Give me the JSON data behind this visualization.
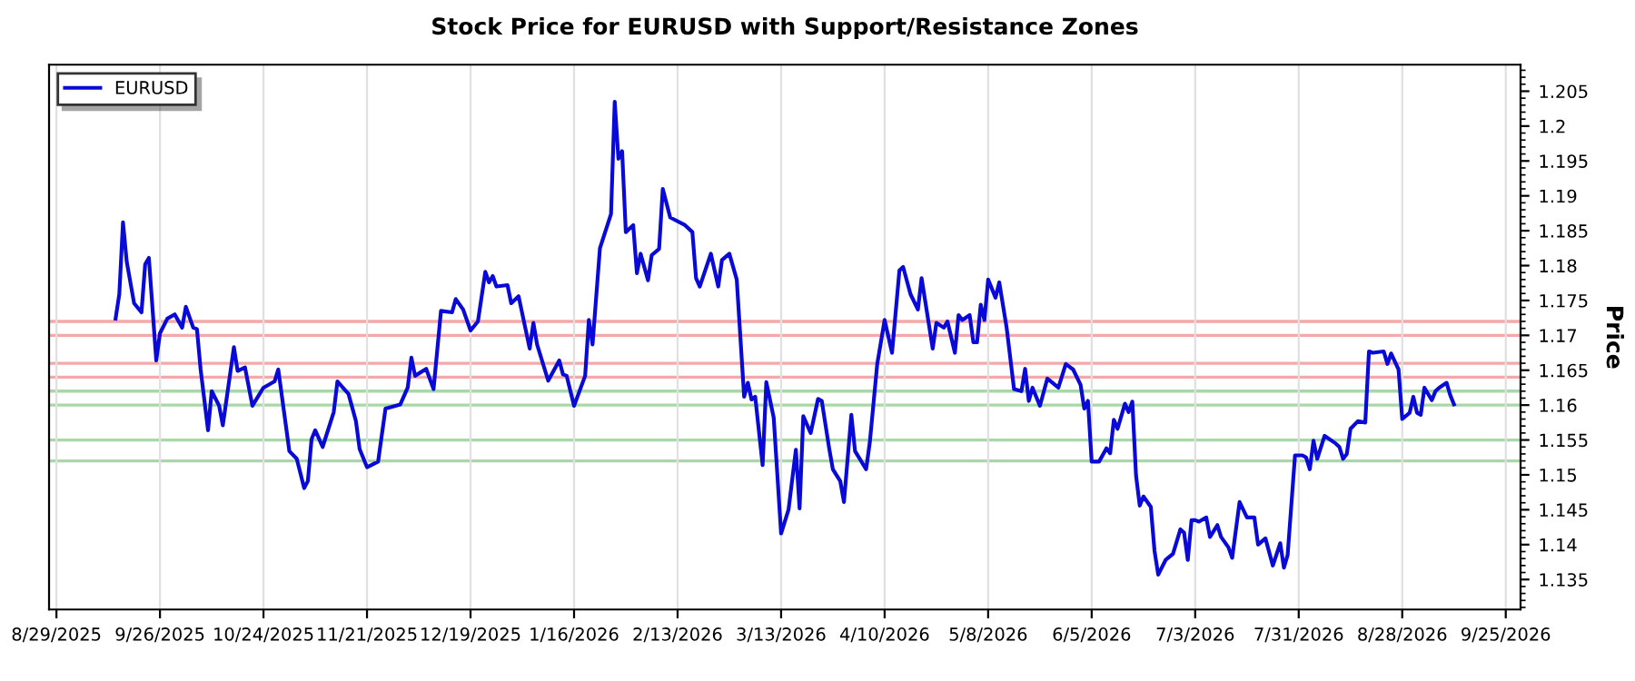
{
  "chart_data": {
    "type": "line",
    "title": "Stock Price for EURUSD with Support/Resistance Zones",
    "ylabel": "Price",
    "x": [
      "2025-09-14",
      "2025-09-15",
      "2025-09-16",
      "2025-09-17",
      "2025-09-19",
      "2025-09-21",
      "2025-09-22",
      "2025-09-23",
      "2025-09-25",
      "2025-09-26",
      "2025-09-28",
      "2025-09-30",
      "2025-10-02",
      "2025-10-03",
      "2025-10-05",
      "2025-10-06",
      "2025-10-07",
      "2025-10-09",
      "2025-10-10",
      "2025-10-12",
      "2025-10-13",
      "2025-10-16",
      "2025-10-17",
      "2025-10-19",
      "2025-10-21",
      "2025-10-24",
      "2025-10-27",
      "2025-10-28",
      "2025-10-31",
      "2025-11-02",
      "2025-11-04",
      "2025-11-05",
      "2025-11-06",
      "2025-11-07",
      "2025-11-09",
      "2025-11-12",
      "2025-11-13",
      "2025-11-16",
      "2025-11-18",
      "2025-11-19",
      "2025-11-21",
      "2025-11-24",
      "2025-11-26",
      "2025-11-30",
      "2025-12-02",
      "2025-12-03",
      "2025-12-04",
      "2025-12-07",
      "2025-12-09",
      "2025-12-11",
      "2025-12-14",
      "2025-12-15",
      "2025-12-17",
      "2025-12-19",
      "2025-12-21",
      "2025-12-23",
      "2025-12-24",
      "2025-12-25",
      "2025-12-26",
      "2025-12-29",
      "2025-12-30",
      "2026-01-01",
      "2026-01-04",
      "2026-01-05",
      "2026-01-06",
      "2026-01-09",
      "2026-01-12",
      "2026-01-13",
      "2026-01-14",
      "2026-01-16",
      "2026-01-19",
      "2026-01-20",
      "2026-01-21",
      "2026-01-23",
      "2026-01-26",
      "2026-01-27",
      "2026-01-28",
      "2026-01-29",
      "2026-01-30",
      "2026-02-01",
      "2026-02-02",
      "2026-02-03",
      "2026-02-05",
      "2026-02-06",
      "2026-02-08",
      "2026-02-09",
      "2026-02-11",
      "2026-02-15",
      "2026-02-17",
      "2026-02-18",
      "2026-02-19",
      "2026-02-22",
      "2026-02-24",
      "2026-02-25",
      "2026-02-27",
      "2026-03-01",
      "2026-03-03",
      "2026-03-04",
      "2026-03-05",
      "2026-03-06",
      "2026-03-08",
      "2026-03-09",
      "2026-03-11",
      "2026-03-13",
      "2026-03-15",
      "2026-03-17",
      "2026-03-18",
      "2026-03-19",
      "2026-03-21",
      "2026-03-23",
      "2026-03-24",
      "2026-03-26",
      "2026-03-27",
      "2026-03-29",
      "2026-03-30",
      "2026-04-01",
      "2026-04-02",
      "2026-04-05",
      "2026-04-06",
      "2026-04-08",
      "2026-04-10",
      "2026-04-12",
      "2026-04-14",
      "2026-04-15",
      "2026-04-17",
      "2026-04-19",
      "2026-04-20",
      "2026-04-23",
      "2026-04-24",
      "2026-04-26",
      "2026-04-27",
      "2026-04-29",
      "2026-04-30",
      "2026-05-01",
      "2026-05-03",
      "2026-05-04",
      "2026-05-05",
      "2026-05-06",
      "2026-05-07",
      "2026-05-08",
      "2026-05-10",
      "2026-05-11",
      "2026-05-13",
      "2026-05-15",
      "2026-05-17",
      "2026-05-18",
      "2026-05-19",
      "2026-05-20",
      "2026-05-22",
      "2026-05-24",
      "2026-05-27",
      "2026-05-29",
      "2026-05-31",
      "2026-06-02",
      "2026-06-03",
      "2026-06-04",
      "2026-06-05",
      "2026-06-07",
      "2026-06-09",
      "2026-06-10",
      "2026-06-11",
      "2026-06-12",
      "2026-06-14",
      "2026-06-15",
      "2026-06-16",
      "2026-06-17",
      "2026-06-18",
      "2026-06-19",
      "2026-06-21",
      "2026-06-22",
      "2026-06-23",
      "2026-06-25",
      "2026-06-27",
      "2026-06-29",
      "2026-06-30",
      "2026-07-01",
      "2026-07-02",
      "2026-07-03",
      "2026-07-04",
      "2026-07-06",
      "2026-07-07",
      "2026-07-09",
      "2026-07-10",
      "2026-07-12",
      "2026-07-13",
      "2026-07-15",
      "2026-07-17",
      "2026-07-19",
      "2026-07-20",
      "2026-07-22",
      "2026-07-24",
      "2026-07-26",
      "2026-07-27",
      "2026-07-28",
      "2026-07-30",
      "2026-08-01",
      "2026-08-02",
      "2026-08-03",
      "2026-08-04",
      "2026-08-05",
      "2026-08-07",
      "2026-08-10",
      "2026-08-11",
      "2026-08-12",
      "2026-08-13",
      "2026-08-14",
      "2026-08-16",
      "2026-08-18",
      "2026-08-19",
      "2026-08-20",
      "2026-08-23",
      "2026-08-24",
      "2026-08-25",
      "2026-08-27",
      "2026-08-28",
      "2026-08-30",
      "2026-08-31",
      "2026-09-01",
      "2026-09-02",
      "2026-09-03",
      "2026-09-05",
      "2026-09-06",
      "2026-09-07",
      "2026-09-09",
      "2026-09-10",
      "2026-09-11"
    ],
    "series": [
      {
        "name": "EURUSD",
        "color": "#0a0ad8",
        "values": [
          1.1724,
          1.1759,
          1.1862,
          1.1806,
          1.1746,
          1.1733,
          1.1802,
          1.1811,
          1.1664,
          1.1703,
          1.1724,
          1.173,
          1.1711,
          1.1741,
          1.1711,
          1.1709,
          1.1651,
          1.1564,
          1.162,
          1.1599,
          1.1571,
          1.1683,
          1.1649,
          1.1654,
          1.1599,
          1.1625,
          1.1634,
          1.1651,
          1.1534,
          1.1523,
          1.1481,
          1.1491,
          1.1551,
          1.1564,
          1.154,
          1.159,
          1.1634,
          1.1616,
          1.1577,
          1.1537,
          1.1511,
          1.1519,
          1.1595,
          1.1601,
          1.1625,
          1.1668,
          1.1642,
          1.1652,
          1.1623,
          1.1735,
          1.1733,
          1.1752,
          1.1737,
          1.1707,
          1.172,
          1.1791,
          1.1776,
          1.1785,
          1.177,
          1.1772,
          1.1746,
          1.1756,
          1.1681,
          1.1718,
          1.1687,
          1.1635,
          1.1664,
          1.1644,
          1.1642,
          1.1599,
          1.1642,
          1.1722,
          1.1687,
          1.1825,
          1.1874,
          1.2035,
          1.1953,
          1.1964,
          1.1848,
          1.1858,
          1.1789,
          1.1817,
          1.1779,
          1.1815,
          1.1824,
          1.191,
          1.1869,
          1.1858,
          1.1848,
          1.1782,
          1.177,
          1.1817,
          1.177,
          1.1808,
          1.1817,
          1.178,
          1.1612,
          1.1632,
          1.1608,
          1.1612,
          1.1514,
          1.1633,
          1.1582,
          1.1416,
          1.145,
          1.1536,
          1.1452,
          1.1584,
          1.156,
          1.1609,
          1.1606,
          1.1538,
          1.1508,
          1.1491,
          1.1461,
          1.1586,
          1.1534,
          1.1508,
          1.1547,
          1.1659,
          1.1722,
          1.1675,
          1.1793,
          1.1798,
          1.1759,
          1.1737,
          1.1782,
          1.1681,
          1.1718,
          1.1711,
          1.172,
          1.1675,
          1.1729,
          1.1722,
          1.1729,
          1.169,
          1.169,
          1.1744,
          1.1722,
          1.178,
          1.1754,
          1.1776,
          1.1711,
          1.1623,
          1.162,
          1.1652,
          1.1606,
          1.1625,
          1.1599,
          1.1638,
          1.1625,
          1.1659,
          1.1651,
          1.1629,
          1.1595,
          1.1606,
          1.1519,
          1.1519,
          1.1538,
          1.1531,
          1.1579,
          1.1566,
          1.1602,
          1.159,
          1.1605,
          1.1499,
          1.1456,
          1.1469,
          1.1454,
          1.1391,
          1.1357,
          1.1378,
          1.1387,
          1.1422,
          1.1417,
          1.1378,
          1.1435,
          1.1435,
          1.1433,
          1.1439,
          1.1411,
          1.1428,
          1.1411,
          1.1396,
          1.1381,
          1.1461,
          1.1439,
          1.1439,
          1.14,
          1.1409,
          1.137,
          1.1402,
          1.1367,
          1.1385,
          1.1528,
          1.1528,
          1.1525,
          1.1508,
          1.1549,
          1.1523,
          1.1556,
          1.1545,
          1.154,
          1.1523,
          1.153,
          1.1566,
          1.1577,
          1.1575,
          1.1677,
          1.1675,
          1.1677,
          1.1659,
          1.1674,
          1.1651,
          1.158,
          1.1589,
          1.1612,
          1.1589,
          1.1586,
          1.1625,
          1.1607,
          1.162,
          1.1625,
          1.1632,
          1.1614,
          1.1601
        ]
      }
    ],
    "xlim": [
      "2025-08-27",
      "2026-09-29"
    ],
    "xticks": [
      {
        "value": "2025-08-29",
        "label": "8/29/2025"
      },
      {
        "value": "2025-09-26",
        "label": "9/26/2025"
      },
      {
        "value": "2025-10-24",
        "label": "10/24/2025"
      },
      {
        "value": "2025-11-21",
        "label": "11/21/2025"
      },
      {
        "value": "2025-12-19",
        "label": "12/19/2025"
      },
      {
        "value": "2026-01-16",
        "label": "1/16/2026"
      },
      {
        "value": "2026-02-13",
        "label": "2/13/2026"
      },
      {
        "value": "2026-03-13",
        "label": "3/13/2026"
      },
      {
        "value": "2026-04-10",
        "label": "4/10/2026"
      },
      {
        "value": "2026-05-08",
        "label": "5/8/2026"
      },
      {
        "value": "2026-06-05",
        "label": "6/5/2026"
      },
      {
        "value": "2026-07-03",
        "label": "7/3/2026"
      },
      {
        "value": "2026-07-31",
        "label": "7/31/2026"
      },
      {
        "value": "2026-08-28",
        "label": "8/28/2026"
      },
      {
        "value": "2026-09-25",
        "label": "9/25/2026"
      }
    ],
    "ylim": [
      1.1307,
      1.2088
    ],
    "yticks": [
      1.135,
      1.14,
      1.145,
      1.15,
      1.155,
      1.16,
      1.165,
      1.17,
      1.175,
      1.18,
      1.185,
      1.19,
      1.195,
      1.2,
      1.205
    ],
    "ref_lines": [
      {
        "axis": "y",
        "value": 1.172,
        "color": "#f4a8a8"
      },
      {
        "axis": "y",
        "value": 1.17,
        "color": "#f4a8a8"
      },
      {
        "axis": "y",
        "value": 1.166,
        "color": "#f4a8a8"
      },
      {
        "axis": "y",
        "value": 1.164,
        "color": "#f4a8a8"
      },
      {
        "axis": "y",
        "value": 1.162,
        "color": "#a8d8a8"
      },
      {
        "axis": "y",
        "value": 1.16,
        "color": "#a8d8a8"
      },
      {
        "axis": "y",
        "value": 1.155,
        "color": "#a8d8a8"
      },
      {
        "axis": "y",
        "value": 1.152,
        "color": "#a8d8a8"
      }
    ],
    "grid": "x",
    "legend": "top left",
    "line_style": "solid",
    "marker": "none"
  }
}
